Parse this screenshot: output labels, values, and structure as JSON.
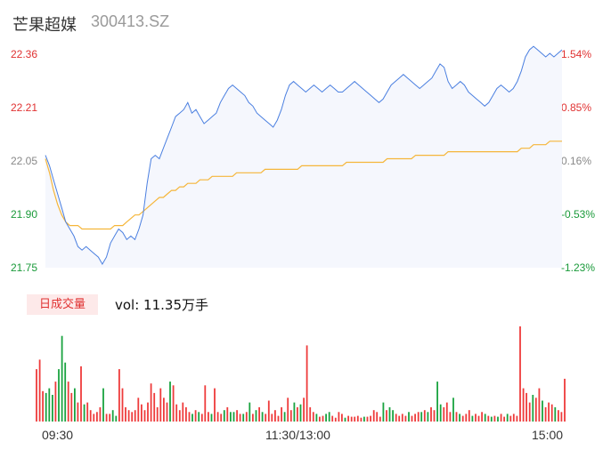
{
  "header": {
    "name": "芒果超媒",
    "code": "300413.SZ"
  },
  "volume": {
    "badge": "日成交量",
    "label": "vol: 11.35万手"
  },
  "colors": {
    "price": "#4a7fe0",
    "avg": "#f5b63a",
    "up": "#ee3b3b",
    "down": "#1aa340",
    "area": "#f5f7fd"
  },
  "chart_data": {
    "type": "line",
    "title": "",
    "price_ticks": [
      "22.36",
      "22.21",
      "22.05",
      "21.90",
      "21.75"
    ],
    "pct_ticks": [
      "1.54%",
      "0.85%",
      "0.16%",
      "-0.53%",
      "-1.23%"
    ],
    "x_ticks": [
      "09:30",
      "11:30/13:00",
      "15:00"
    ],
    "ylim": [
      21.75,
      22.36
    ],
    "series": [
      {
        "key": "price",
        "values": [
          22.07,
          22.04,
          22.0,
          21.96,
          21.92,
          21.88,
          21.86,
          21.84,
          21.81,
          21.8,
          21.81,
          21.8,
          21.79,
          21.78,
          21.76,
          21.78,
          21.82,
          21.84,
          21.86,
          21.85,
          21.83,
          21.84,
          21.83,
          21.86,
          21.9,
          21.99,
          22.06,
          22.07,
          22.06,
          22.09,
          22.12,
          22.15,
          22.18,
          22.19,
          22.2,
          22.22,
          22.19,
          22.2,
          22.18,
          22.16,
          22.17,
          22.18,
          22.19,
          22.22,
          22.24,
          22.26,
          22.27,
          22.26,
          22.25,
          22.24,
          22.22,
          22.21,
          22.19,
          22.18,
          22.17,
          22.16,
          22.15,
          22.17,
          22.2,
          22.24,
          22.27,
          22.28,
          22.27,
          22.26,
          22.25,
          22.26,
          22.27,
          22.26,
          22.25,
          22.26,
          22.27,
          22.26,
          22.25,
          22.25,
          22.26,
          22.27,
          22.28,
          22.27,
          22.26,
          22.25,
          22.24,
          22.23,
          22.22,
          22.23,
          22.25,
          22.27,
          22.28,
          22.29,
          22.3,
          22.29,
          22.28,
          22.27,
          22.26,
          22.27,
          22.28,
          22.29,
          22.31,
          22.33,
          22.32,
          22.28,
          22.26,
          22.27,
          22.28,
          22.27,
          22.25,
          22.24,
          22.23,
          22.22,
          22.21,
          22.22,
          22.24,
          22.26,
          22.27,
          22.26,
          22.25,
          22.26,
          22.28,
          22.31,
          22.35,
          22.37,
          22.38,
          22.37,
          22.36,
          22.35,
          22.36,
          22.35,
          22.36,
          22.37
        ],
        "moves": [
          0,
          -1,
          -1,
          -1,
          -1,
          -1,
          -1,
          -1,
          -1,
          -1,
          1,
          -1,
          -1,
          -1,
          -1,
          1,
          1,
          1,
          1,
          -1,
          -1,
          1,
          -1,
          1,
          1,
          1,
          1,
          1,
          -1,
          1,
          1,
          1,
          1,
          1,
          1,
          1,
          -1,
          1,
          -1,
          -1,
          1,
          1,
          1,
          1,
          1,
          1,
          1,
          -1,
          -1,
          -1,
          -1,
          -1,
          -1,
          -1,
          -1,
          -1,
          -1,
          1,
          1,
          1,
          1,
          1,
          -1,
          -1,
          -1,
          1,
          1,
          -1,
          -1,
          1,
          1,
          -1,
          -1,
          0,
          1,
          1,
          1,
          -1,
          -1,
          -1,
          -1,
          -1,
          -1,
          1,
          1,
          1,
          1,
          1,
          1,
          -1,
          -1,
          -1,
          -1,
          1,
          1,
          1,
          1,
          1,
          -1,
          -1,
          -1,
          1,
          1,
          -1,
          -1,
          -1,
          -1,
          -1,
          -1,
          1,
          1,
          1,
          1,
          -1,
          -1,
          1,
          1,
          1,
          1,
          1,
          1,
          -1,
          -1,
          -1,
          1,
          -1,
          1,
          1
        ]
      },
      {
        "key": "avg",
        "values": [
          22.06,
          22.02,
          21.97,
          21.93,
          21.9,
          21.88,
          21.87,
          21.87,
          21.87,
          21.86,
          21.86,
          21.86,
          21.86,
          21.86,
          21.86,
          21.86,
          21.86,
          21.87,
          21.87,
          21.87,
          21.88,
          21.89,
          21.9,
          21.9,
          21.91,
          21.92,
          21.93,
          21.94,
          21.95,
          21.95,
          21.96,
          21.97,
          21.97,
          21.98,
          21.98,
          21.99,
          21.99,
          21.99,
          22.0,
          22.0,
          22.0,
          22.01,
          22.01,
          22.01,
          22.01,
          22.01,
          22.01,
          22.02,
          22.02,
          22.02,
          22.02,
          22.02,
          22.02,
          22.02,
          22.03,
          22.03,
          22.03,
          22.03,
          22.03,
          22.03,
          22.03,
          22.03,
          22.03,
          22.04,
          22.04,
          22.04,
          22.04,
          22.04,
          22.04,
          22.04,
          22.04,
          22.04,
          22.04,
          22.04,
          22.05,
          22.05,
          22.05,
          22.05,
          22.05,
          22.05,
          22.05,
          22.05,
          22.05,
          22.05,
          22.06,
          22.06,
          22.06,
          22.06,
          22.06,
          22.06,
          22.06,
          22.07,
          22.07,
          22.07,
          22.07,
          22.07,
          22.07,
          22.07,
          22.07,
          22.08,
          22.08,
          22.08,
          22.08,
          22.08,
          22.08,
          22.08,
          22.08,
          22.08,
          22.08,
          22.08,
          22.08,
          22.08,
          22.08,
          22.08,
          22.08,
          22.08,
          22.08,
          22.09,
          22.09,
          22.09,
          22.1,
          22.1,
          22.1,
          22.1,
          22.11,
          22.11,
          22.11,
          22.11
        ]
      }
    ],
    "volume_bars": [
      0.55,
      0.65,
      0.32,
      0.3,
      0.35,
      0.28,
      0.42,
      0.55,
      0.9,
      0.62,
      0.42,
      0.3,
      0.35,
      0.2,
      0.58,
      0.18,
      0.2,
      0.12,
      0.08,
      0.1,
      0.15,
      0.35,
      0.08,
      0.08,
      0.12,
      0.06,
      0.55,
      0.35,
      0.15,
      0.12,
      0.1,
      0.12,
      0.25,
      0.18,
      0.12,
      0.2,
      0.4,
      0.3,
      0.15,
      0.35,
      0.25,
      0.2,
      0.42,
      0.38,
      0.18,
      0.12,
      0.2,
      0.15,
      0.1,
      0.08,
      0.12,
      0.1,
      0.08,
      0.38,
      0.1,
      0.08,
      0.35,
      0.1,
      0.08,
      0.12,
      0.15,
      0.1,
      0.1,
      0.12,
      0.08,
      0.08,
      0.1,
      0.2,
      0.08,
      0.12,
      0.15,
      0.1,
      0.08,
      0.22,
      0.08,
      0.12,
      0.06,
      0.15,
      0.1,
      0.25,
      0.12,
      0.2,
      0.15,
      0.18,
      0.25,
      0.8,
      0.15,
      0.1,
      0.08,
      0.05,
      0.06,
      0.08,
      0.1,
      0.06,
      0.04,
      0.1,
      0.08,
      0.04,
      0.06,
      0.05,
      0.05,
      0.06,
      0.04,
      0.05,
      0.05,
      0.06,
      0.12,
      0.1,
      0.05,
      0.2,
      0.12,
      0.15,
      0.12,
      0.08,
      0.06,
      0.08,
      0.06,
      0.1,
      0.06,
      0.08,
      0.1,
      0.1,
      0.12,
      0.1,
      0.15,
      0.12,
      0.42,
      0.18,
      0.15,
      0.2,
      0.1,
      0.25,
      0.1,
      0.08,
      0.06,
      0.08,
      0.12,
      0.06,
      0.08,
      0.06,
      0.1,
      0.08,
      0.06,
      0.05,
      0.06,
      0.05,
      0.08,
      0.05,
      0.08,
      0.06,
      0.08,
      0.06,
      1.0,
      0.35,
      0.3,
      0.2,
      0.28,
      0.25,
      0.35,
      0.22,
      0.15,
      0.2,
      0.18,
      0.15,
      0.12,
      0.1,
      0.45
    ],
    "volume_moves": [
      1,
      1,
      1,
      -1,
      -1,
      -1,
      1,
      -1,
      -1,
      -1,
      1,
      1,
      -1,
      1,
      1,
      -1,
      1,
      1,
      1,
      1,
      1,
      -1,
      1,
      1,
      -1,
      -1,
      1,
      1,
      1,
      1,
      1,
      1,
      1,
      1,
      1,
      1,
      1,
      1,
      1,
      1,
      1,
      1,
      -1,
      1,
      1,
      1,
      1,
      1,
      1,
      -1,
      1,
      -1,
      1,
      1,
      1,
      -1,
      1,
      1,
      1,
      -1,
      1,
      -1,
      -1,
      1,
      1,
      -1,
      1,
      -1,
      1,
      -1,
      1,
      -1,
      1,
      1,
      1,
      1,
      1,
      1,
      -1,
      1,
      1,
      -1,
      1,
      -1,
      1,
      1,
      1,
      1,
      -1,
      1,
      1,
      -1,
      -1,
      1,
      1,
      1,
      1,
      -1,
      1,
      1,
      1,
      1,
      1,
      -1,
      1,
      1,
      1,
      1,
      1,
      -1,
      1,
      -1,
      -1,
      1,
      1,
      1,
      1,
      -1,
      1,
      1,
      1,
      -1,
      1,
      -1,
      1,
      1,
      -1,
      -1,
      1,
      1,
      1,
      -1,
      1,
      -1,
      1,
      1,
      1,
      -1,
      1,
      1,
      1,
      -1,
      1,
      -1,
      1,
      -1,
      1,
      1,
      -1,
      1,
      1,
      1,
      1,
      1,
      1,
      1,
      -1,
      1,
      1,
      -1,
      1,
      1,
      1,
      -1
    ]
  }
}
